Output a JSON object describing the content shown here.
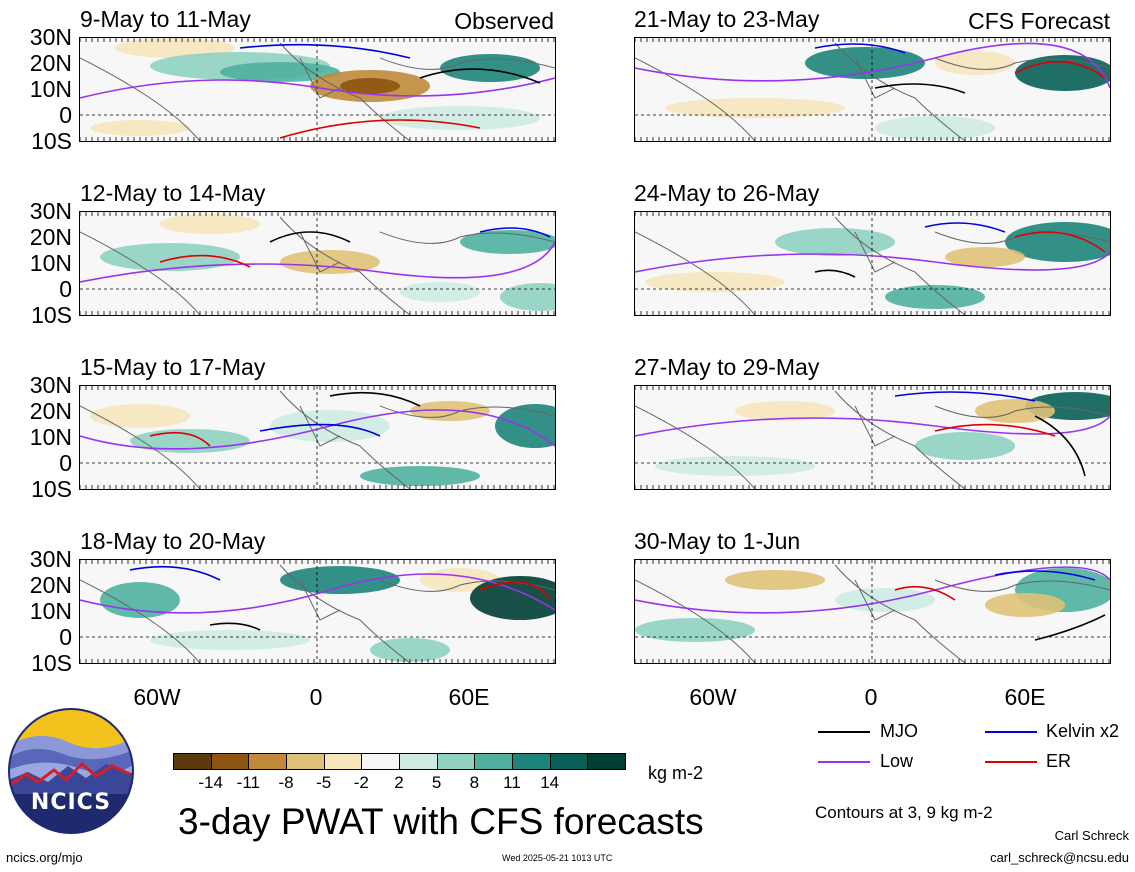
{
  "panels_left": [
    {
      "title": "9-May to 11-May",
      "tag": "Observed"
    },
    {
      "title": "12-May to 14-May",
      "tag": ""
    },
    {
      "title": "15-May to 17-May",
      "tag": ""
    },
    {
      "title": "18-May to 20-May",
      "tag": ""
    }
  ],
  "panels_right": [
    {
      "title": "21-May to 23-May",
      "tag": "CFS Forecast"
    },
    {
      "title": "24-May to 26-May",
      "tag": ""
    },
    {
      "title": "27-May to 29-May",
      "tag": ""
    },
    {
      "title": "30-May to 1-Jun",
      "tag": ""
    }
  ],
  "lat_labels": [
    "30N",
    "20N",
    "10N",
    "0",
    "10S"
  ],
  "lon_labels": [
    "60W",
    "0",
    "60E"
  ],
  "colorbar": {
    "colors": [
      "#5c3a0c",
      "#8c5410",
      "#c08a3a",
      "#dfc178",
      "#f5e6bc",
      "#f7f7f7",
      "#cdebe3",
      "#8fd2c2",
      "#4fb09e",
      "#1d847a",
      "#075f55",
      "#003d33"
    ],
    "labels": [
      "-14",
      "-11",
      "-8",
      "-5",
      "-2",
      "2",
      "5",
      "8",
      "11",
      "14"
    ],
    "units": "kg m-2"
  },
  "legend": {
    "items": [
      {
        "label": "MJO",
        "color": "#000000"
      },
      {
        "label": "Kelvin x2",
        "color": "#0000dd"
      },
      {
        "label": "Low",
        "color": "#9933ee"
      },
      {
        "label": "ER",
        "color": "#dd0000"
      }
    ],
    "contours_note": "Contours at 3, 9 kg m-2"
  },
  "main_title": "3-day PWAT with CFS forecasts",
  "logo_text": "NCICS",
  "footer": {
    "url": "ncics.org/mjo",
    "timestamp": "Wed 2025-05-21 1013 UTC",
    "author": "Carl Schreck",
    "email": "carl_schreck@ncsu.edu"
  }
}
